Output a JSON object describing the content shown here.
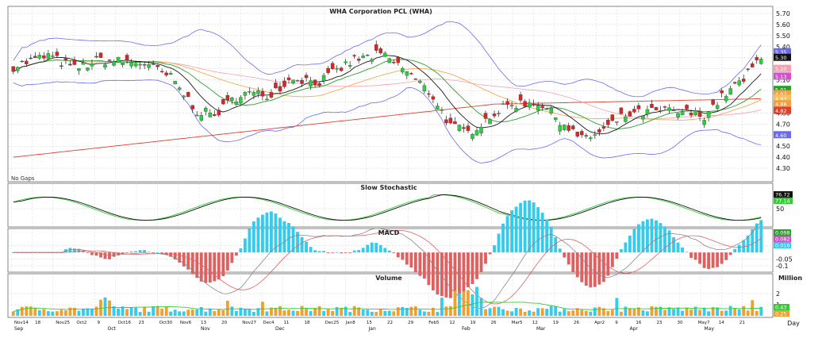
{
  "colors": {
    "up_candle": "#2ecc40",
    "down_candle": "#d62728",
    "bollinger": "#6a6af0",
    "ma_short": "#1a1a1a",
    "ma_green": "#2aa02a",
    "ma_orange": "#f0a040",
    "ma_pink": "#f4a0b0",
    "ma_red_long": "#e04030",
    "stoch_k": "#111111",
    "stoch_d": "#33cc33",
    "macd_pos": "#33ccee",
    "macd_neg": "#e06060",
    "volume_up": "#33ccee",
    "volume_down": "#f0a030",
    "volume_ma": "#33cc33",
    "grid": "#cccccc"
  },
  "chart_data": [
    {
      "type": "candlestick",
      "title": "WHA Corporation PCL (WHA)",
      "note": "No Gaps",
      "ylim": [
        4.2,
        5.75
      ],
      "y_ticks": [
        "5.70",
        "5.60",
        "5.50",
        "5.40",
        "5.30",
        "5.20",
        "5.10",
        "5.00",
        "4.90",
        "4.80",
        "4.70",
        "4.60",
        "4.50",
        "4.40",
        "4.30"
      ],
      "right_labels": [
        "5.35",
        "5.30",
        "5.20",
        "5.13",
        "5.01",
        "4.97",
        "4.93",
        "4.88",
        "4.82",
        "4.60"
      ],
      "grid": true
    },
    {
      "type": "line",
      "title": "Slow Stochastic",
      "ylim": [
        0,
        100
      ],
      "y_ticks": [
        "50"
      ],
      "right_labels": [
        "76.72",
        "77.14"
      ],
      "series": [
        {
          "values": []
        },
        {
          "values": []
        }
      ]
    },
    {
      "type": "bar",
      "title": "MACD",
      "y_ticks": [
        "0.05",
        "-0.05",
        "-0.1"
      ],
      "right_labels": [
        "0.098",
        "0.082",
        "0.016"
      ]
    },
    {
      "type": "bar",
      "title": "Volume",
      "y_unit": "Million",
      "ylim": [
        0,
        3
      ],
      "y_ticks": [
        "2",
        "1"
      ],
      "right_labels": [
        "0.43",
        "0.25"
      ]
    }
  ],
  "x_axis": {
    "top_row": [
      "Nov14",
      "18",
      "Nov25",
      "Oct2",
      "9",
      "Oct16",
      "23",
      "Oct30",
      "Nov6",
      "13",
      "20",
      "Nov27",
      "Dec4",
      "11",
      "18",
      "Dec25",
      "Jan8",
      "15",
      "22",
      "29",
      "Feb5",
      "12",
      "19",
      "26",
      "Mar5",
      "12",
      "19",
      "26",
      "Apr2",
      "9",
      "16",
      "23",
      "30",
      "May7",
      "14",
      "21"
    ],
    "bottom_row": [
      "Sep",
      "Oct",
      "Nov",
      "Dec",
      "Jan",
      "Feb",
      "Mar",
      "Apr",
      "May"
    ],
    "period_label": "Day"
  }
}
